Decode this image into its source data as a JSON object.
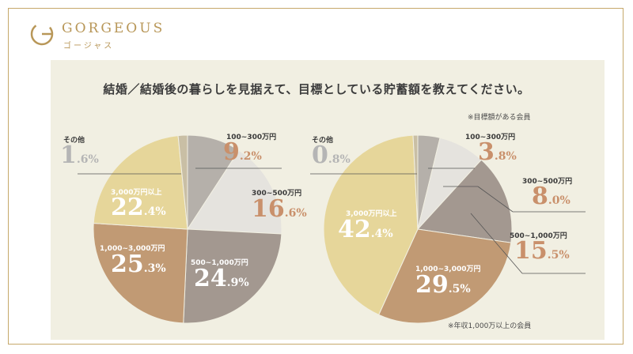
{
  "brand": {
    "name": "GORGEOUS",
    "sub": "ゴージャス",
    "color": "#b89758"
  },
  "title": "結婚／結婚後の暮らしを見据えて、目標としている貯蓄額を教えてください。",
  "notes": {
    "top_right": "※目標額がある会員",
    "bottom_right": "※年収1,000万以上の会員"
  },
  "chart_data": [
    {
      "type": "pie",
      "start_angle_deg": 0,
      "slices": [
        {
          "name": "100~300万円",
          "value": 9.2,
          "color": "#b5b0aa",
          "int": "9",
          "dec": ".2%"
        },
        {
          "name": "300~500万円",
          "value": 16.6,
          "color": "#e5e3de",
          "int": "16",
          "dec": ".6%"
        },
        {
          "name": "500~1,000万円",
          "value": 24.9,
          "color": "#a39890",
          "int": "24",
          "dec": ".9%"
        },
        {
          "name": "1,000~3,000万円",
          "value": 25.3,
          "color": "#c19a74",
          "int": "25",
          "dec": ".3%"
        },
        {
          "name": "3,000万円以上",
          "value": 22.4,
          "color": "#e6d69a",
          "int": "22",
          "dec": ".4%"
        },
        {
          "name": "その他",
          "value": 1.6,
          "color": "#c9bfa5",
          "int": "1",
          "dec": ".6%"
        }
      ]
    },
    {
      "type": "pie",
      "start_angle_deg": 0,
      "slices": [
        {
          "name": "100~300万円",
          "value": 3.8,
          "color": "#b5b0aa",
          "int": "3",
          "dec": ".8%"
        },
        {
          "name": "300~500万円",
          "value": 8.0,
          "color": "#e5e3de",
          "int": "8",
          "dec": ".0%"
        },
        {
          "name": "500~1,000万円",
          "value": 15.5,
          "color": "#a39890",
          "int": "15",
          "dec": ".5%"
        },
        {
          "name": "1,000~3,000万円",
          "value": 29.5,
          "color": "#c19a74",
          "int": "29",
          "dec": ".5%"
        },
        {
          "name": "3,000万円以上",
          "value": 42.4,
          "color": "#e6d69a",
          "int": "42",
          "dec": ".4%"
        },
        {
          "name": "その他",
          "value": 0.8,
          "color": "#c9bfa5",
          "int": "0",
          "dec": ".8%"
        }
      ]
    }
  ]
}
